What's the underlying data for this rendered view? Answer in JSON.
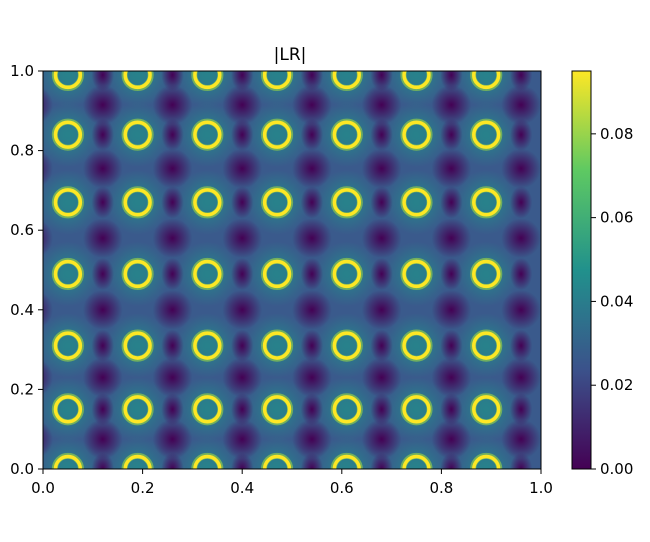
{
  "chart_data": {
    "type": "heatmap",
    "title": "|LR|",
    "xlabel": "",
    "ylabel": "",
    "xlim": [
      0.0,
      1.0
    ],
    "ylim": [
      0.0,
      1.0
    ],
    "x_ticks": [
      "0.0",
      "0.2",
      "0.4",
      "0.6",
      "0.8",
      "1.0"
    ],
    "y_ticks": [
      "0.0",
      "0.2",
      "0.4",
      "0.6",
      "0.8",
      "1.0"
    ],
    "colormap": "viridis",
    "colorbar": {
      "range": [
        0.0,
        0.095
      ],
      "ticks": [
        "0.00",
        "0.02",
        "0.04",
        "0.06",
        "0.08"
      ],
      "colors": [
        "#440154",
        "#3b528b",
        "#21918c",
        "#5ec962",
        "#fde725"
      ]
    },
    "pattern": {
      "description": "periodic lattice of bright rings",
      "ring_centers_x": [
        0.05,
        0.19,
        0.33,
        0.47,
        0.61,
        0.75,
        0.89
      ],
      "ring_centers_y": [
        0.0,
        0.15,
        0.31,
        0.49,
        0.67,
        0.84,
        0.99
      ],
      "ring_radius": 0.025,
      "ring_value": 0.09,
      "background_value": 0.03,
      "dark_spot_value": 0.005
    },
    "grid": false,
    "legend": "colorbar-right"
  }
}
